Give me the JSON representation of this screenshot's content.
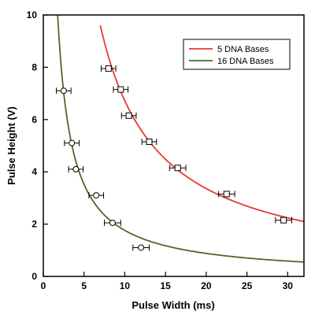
{
  "chart_data": {
    "type": "scatter",
    "title": "",
    "xlabel": "Pulse Width (ms)",
    "ylabel": "Pulse Height (V)",
    "xlim": [
      0,
      32
    ],
    "ylim": [
      0,
      10
    ],
    "x_ticks": [
      0,
      5,
      10,
      15,
      20,
      25,
      30
    ],
    "y_ticks": [
      0,
      2,
      4,
      6,
      8,
      10
    ],
    "grid": false,
    "legend_position": "top-right",
    "series": [
      {
        "name": "5 DNA Bases",
        "color": "#e8392d",
        "marker": "square",
        "points": [
          {
            "x": 8.0,
            "y": 7.95,
            "xerr": 0.9
          },
          {
            "x": 9.5,
            "y": 7.15,
            "xerr": 0.9
          },
          {
            "x": 10.5,
            "y": 6.15,
            "xerr": 0.9
          },
          {
            "x": 13.0,
            "y": 5.15,
            "xerr": 0.9
          },
          {
            "x": 16.5,
            "y": 4.15,
            "xerr": 1.0
          },
          {
            "x": 22.5,
            "y": 3.15,
            "xerr": 1.0
          },
          {
            "x": 29.5,
            "y": 2.15,
            "xerr": 1.0
          }
        ],
        "fit": {
          "x_start": 7.0,
          "x_end": 32.0,
          "value_at_end": 2.1
        }
      },
      {
        "name": "16 DNA Bases",
        "color": "#4a6a2a",
        "marker": "circle",
        "points": [
          {
            "x": 2.5,
            "y": 7.1,
            "xerr": 0.9
          },
          {
            "x": 3.5,
            "y": 5.1,
            "xerr": 0.9
          },
          {
            "x": 4.0,
            "y": 4.1,
            "xerr": 0.9
          },
          {
            "x": 6.5,
            "y": 3.1,
            "xerr": 0.9
          },
          {
            "x": 8.5,
            "y": 2.05,
            "xerr": 1.0
          },
          {
            "x": 12.0,
            "y": 1.1,
            "xerr": 1.0
          }
        ],
        "fit": {
          "x_start": 1.7,
          "x_end": 32.0,
          "value_at_end": 0.55
        }
      }
    ]
  }
}
